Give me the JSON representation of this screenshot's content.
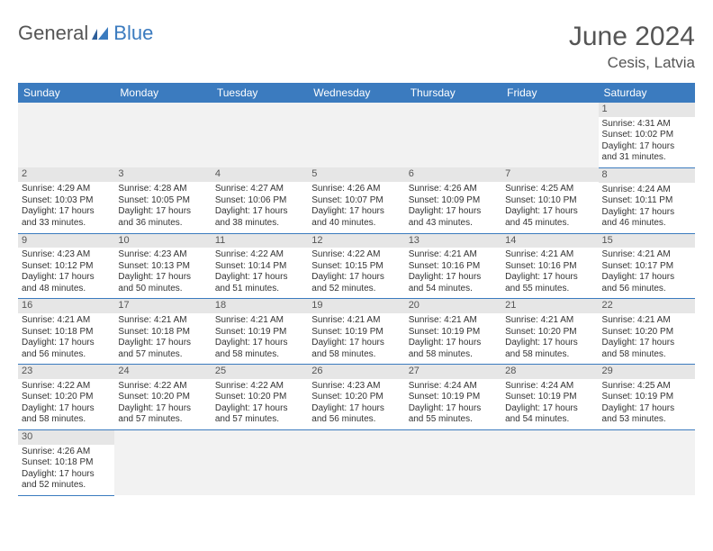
{
  "logo": {
    "general": "General",
    "blue": "Blue"
  },
  "title": "June 2024",
  "location": "Cesis, Latvia",
  "colors": {
    "header_bg": "#3b7bbf",
    "header_text": "#ffffff",
    "daynum_bg": "#e6e6e6",
    "empty_bg": "#f2f2f2",
    "row_divider": "#3b7bbf",
    "text": "#333333",
    "title_text": "#555555"
  },
  "day_headers": [
    "Sunday",
    "Monday",
    "Tuesday",
    "Wednesday",
    "Thursday",
    "Friday",
    "Saturday"
  ],
  "weeks": [
    [
      null,
      null,
      null,
      null,
      null,
      null,
      {
        "n": "1",
        "sunrise": "Sunrise: 4:31 AM",
        "sunset": "Sunset: 10:02 PM",
        "dl1": "Daylight: 17 hours",
        "dl2": "and 31 minutes."
      }
    ],
    [
      {
        "n": "2",
        "sunrise": "Sunrise: 4:29 AM",
        "sunset": "Sunset: 10:03 PM",
        "dl1": "Daylight: 17 hours",
        "dl2": "and 33 minutes."
      },
      {
        "n": "3",
        "sunrise": "Sunrise: 4:28 AM",
        "sunset": "Sunset: 10:05 PM",
        "dl1": "Daylight: 17 hours",
        "dl2": "and 36 minutes."
      },
      {
        "n": "4",
        "sunrise": "Sunrise: 4:27 AM",
        "sunset": "Sunset: 10:06 PM",
        "dl1": "Daylight: 17 hours",
        "dl2": "and 38 minutes."
      },
      {
        "n": "5",
        "sunrise": "Sunrise: 4:26 AM",
        "sunset": "Sunset: 10:07 PM",
        "dl1": "Daylight: 17 hours",
        "dl2": "and 40 minutes."
      },
      {
        "n": "6",
        "sunrise": "Sunrise: 4:26 AM",
        "sunset": "Sunset: 10:09 PM",
        "dl1": "Daylight: 17 hours",
        "dl2": "and 43 minutes."
      },
      {
        "n": "7",
        "sunrise": "Sunrise: 4:25 AM",
        "sunset": "Sunset: 10:10 PM",
        "dl1": "Daylight: 17 hours",
        "dl2": "and 45 minutes."
      },
      {
        "n": "8",
        "sunrise": "Sunrise: 4:24 AM",
        "sunset": "Sunset: 10:11 PM",
        "dl1": "Daylight: 17 hours",
        "dl2": "and 46 minutes."
      }
    ],
    [
      {
        "n": "9",
        "sunrise": "Sunrise: 4:23 AM",
        "sunset": "Sunset: 10:12 PM",
        "dl1": "Daylight: 17 hours",
        "dl2": "and 48 minutes."
      },
      {
        "n": "10",
        "sunrise": "Sunrise: 4:23 AM",
        "sunset": "Sunset: 10:13 PM",
        "dl1": "Daylight: 17 hours",
        "dl2": "and 50 minutes."
      },
      {
        "n": "11",
        "sunrise": "Sunrise: 4:22 AM",
        "sunset": "Sunset: 10:14 PM",
        "dl1": "Daylight: 17 hours",
        "dl2": "and 51 minutes."
      },
      {
        "n": "12",
        "sunrise": "Sunrise: 4:22 AM",
        "sunset": "Sunset: 10:15 PM",
        "dl1": "Daylight: 17 hours",
        "dl2": "and 52 minutes."
      },
      {
        "n": "13",
        "sunrise": "Sunrise: 4:21 AM",
        "sunset": "Sunset: 10:16 PM",
        "dl1": "Daylight: 17 hours",
        "dl2": "and 54 minutes."
      },
      {
        "n": "14",
        "sunrise": "Sunrise: 4:21 AM",
        "sunset": "Sunset: 10:16 PM",
        "dl1": "Daylight: 17 hours",
        "dl2": "and 55 minutes."
      },
      {
        "n": "15",
        "sunrise": "Sunrise: 4:21 AM",
        "sunset": "Sunset: 10:17 PM",
        "dl1": "Daylight: 17 hours",
        "dl2": "and 56 minutes."
      }
    ],
    [
      {
        "n": "16",
        "sunrise": "Sunrise: 4:21 AM",
        "sunset": "Sunset: 10:18 PM",
        "dl1": "Daylight: 17 hours",
        "dl2": "and 56 minutes."
      },
      {
        "n": "17",
        "sunrise": "Sunrise: 4:21 AM",
        "sunset": "Sunset: 10:18 PM",
        "dl1": "Daylight: 17 hours",
        "dl2": "and 57 minutes."
      },
      {
        "n": "18",
        "sunrise": "Sunrise: 4:21 AM",
        "sunset": "Sunset: 10:19 PM",
        "dl1": "Daylight: 17 hours",
        "dl2": "and 58 minutes."
      },
      {
        "n": "19",
        "sunrise": "Sunrise: 4:21 AM",
        "sunset": "Sunset: 10:19 PM",
        "dl1": "Daylight: 17 hours",
        "dl2": "and 58 minutes."
      },
      {
        "n": "20",
        "sunrise": "Sunrise: 4:21 AM",
        "sunset": "Sunset: 10:19 PM",
        "dl1": "Daylight: 17 hours",
        "dl2": "and 58 minutes."
      },
      {
        "n": "21",
        "sunrise": "Sunrise: 4:21 AM",
        "sunset": "Sunset: 10:20 PM",
        "dl1": "Daylight: 17 hours",
        "dl2": "and 58 minutes."
      },
      {
        "n": "22",
        "sunrise": "Sunrise: 4:21 AM",
        "sunset": "Sunset: 10:20 PM",
        "dl1": "Daylight: 17 hours",
        "dl2": "and 58 minutes."
      }
    ],
    [
      {
        "n": "23",
        "sunrise": "Sunrise: 4:22 AM",
        "sunset": "Sunset: 10:20 PM",
        "dl1": "Daylight: 17 hours",
        "dl2": "and 58 minutes."
      },
      {
        "n": "24",
        "sunrise": "Sunrise: 4:22 AM",
        "sunset": "Sunset: 10:20 PM",
        "dl1": "Daylight: 17 hours",
        "dl2": "and 57 minutes."
      },
      {
        "n": "25",
        "sunrise": "Sunrise: 4:22 AM",
        "sunset": "Sunset: 10:20 PM",
        "dl1": "Daylight: 17 hours",
        "dl2": "and 57 minutes."
      },
      {
        "n": "26",
        "sunrise": "Sunrise: 4:23 AM",
        "sunset": "Sunset: 10:20 PM",
        "dl1": "Daylight: 17 hours",
        "dl2": "and 56 minutes."
      },
      {
        "n": "27",
        "sunrise": "Sunrise: 4:24 AM",
        "sunset": "Sunset: 10:19 PM",
        "dl1": "Daylight: 17 hours",
        "dl2": "and 55 minutes."
      },
      {
        "n": "28",
        "sunrise": "Sunrise: 4:24 AM",
        "sunset": "Sunset: 10:19 PM",
        "dl1": "Daylight: 17 hours",
        "dl2": "and 54 minutes."
      },
      {
        "n": "29",
        "sunrise": "Sunrise: 4:25 AM",
        "sunset": "Sunset: 10:19 PM",
        "dl1": "Daylight: 17 hours",
        "dl2": "and 53 minutes."
      }
    ],
    [
      {
        "n": "30",
        "sunrise": "Sunrise: 4:26 AM",
        "sunset": "Sunset: 10:18 PM",
        "dl1": "Daylight: 17 hours",
        "dl2": "and 52 minutes."
      },
      null,
      null,
      null,
      null,
      null,
      null
    ]
  ]
}
